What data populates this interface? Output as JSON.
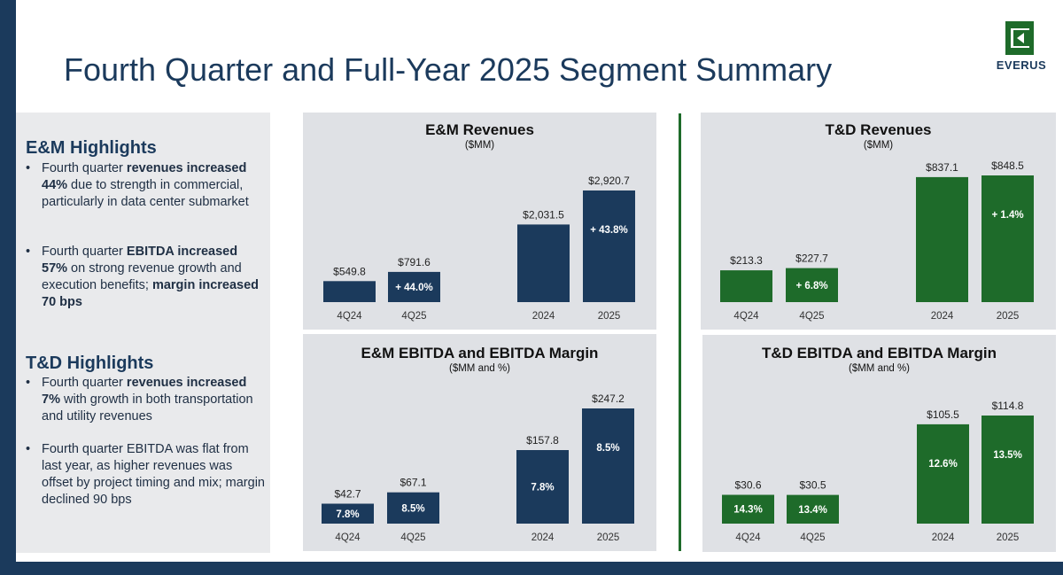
{
  "page": {
    "title": "Fourth Quarter and Full-Year 2025 Segment Summary",
    "brand": "EVERUS",
    "colors": {
      "navy": "#1b3a5c",
      "green": "#1e6b2a"
    }
  },
  "sidebar": {
    "em": {
      "heading": "E&M Highlights",
      "bullets": [
        [
          {
            "t": "Fourth quarter ",
            "b": false
          },
          {
            "t": "revenues increased 44%",
            "b": true
          },
          {
            "t": " due to strength in commercial, particularly in data center submarket",
            "b": false
          }
        ],
        [
          {
            "t": "Fourth quarter ",
            "b": false
          },
          {
            "t": "EBITDA increased 57%",
            "b": true
          },
          {
            "t": " on strong revenue growth and execution benefits; ",
            "b": false
          },
          {
            "t": "margin increased 70 bps",
            "b": true
          }
        ]
      ]
    },
    "td": {
      "heading": "T&D Highlights",
      "bullets": [
        [
          {
            "t": "Fourth quarter ",
            "b": false
          },
          {
            "t": "revenues increased 7%",
            "b": true
          },
          {
            "t": " with growth in both transportation and utility revenues",
            "b": false
          }
        ],
        [
          {
            "t": "Fourth quarter EBITDA was flat from last year, as higher revenues was offset by project timing and mix; margin declined 90 bps",
            "b": false
          }
        ]
      ]
    }
  },
  "chart_data": [
    {
      "id": "em-rev",
      "type": "bar",
      "title": "E&M Revenues",
      "subtitle": "($MM)",
      "categories": [
        "4Q24",
        "4Q25",
        "2024",
        "2025"
      ],
      "values": [
        549.8,
        791.6,
        2031.5,
        2920.7
      ],
      "value_labels": [
        "$549.8",
        "$791.6",
        "$2,031.5",
        "$2,920.7"
      ],
      "inner_labels": [
        "",
        "+ 44.0%",
        "",
        "+ 43.8%"
      ],
      "color": "#1b3a5c"
    },
    {
      "id": "td-rev",
      "type": "bar",
      "title": "T&D Revenues",
      "subtitle": "($MM)",
      "categories": [
        "4Q24",
        "4Q25",
        "2024",
        "2025"
      ],
      "values": [
        213.3,
        227.7,
        837.1,
        848.5
      ],
      "value_labels": [
        "$213.3",
        "$227.7",
        "$837.1",
        "$848.5"
      ],
      "inner_labels": [
        "",
        "+ 6.8%",
        "",
        "+ 1.4%"
      ],
      "color": "#1e6b2a"
    },
    {
      "id": "em-ebitda",
      "type": "bar",
      "title": "E&M EBITDA and EBITDA Margin",
      "subtitle": "($MM and %)",
      "categories": [
        "4Q24",
        "4Q25",
        "2024",
        "2025"
      ],
      "values": [
        42.7,
        67.1,
        157.8,
        247.2
      ],
      "value_labels": [
        "$42.7",
        "$67.1",
        "$157.8",
        "$247.2"
      ],
      "inner_labels": [
        "7.8%",
        "8.5%",
        "7.8%",
        "8.5%"
      ],
      "color": "#1b3a5c"
    },
    {
      "id": "td-ebitda",
      "type": "bar",
      "title": "T&D EBITDA and EBITDA Margin",
      "subtitle": "($MM and %)",
      "categories": [
        "4Q24",
        "4Q25",
        "2024",
        "2025"
      ],
      "values": [
        30.6,
        30.5,
        105.5,
        114.8
      ],
      "value_labels": [
        "$30.6",
        "$30.5",
        "$105.5",
        "$114.8"
      ],
      "inner_labels": [
        "14.3%",
        "13.4%",
        "12.6%",
        "13.5%"
      ],
      "color": "#1e6b2a"
    }
  ]
}
